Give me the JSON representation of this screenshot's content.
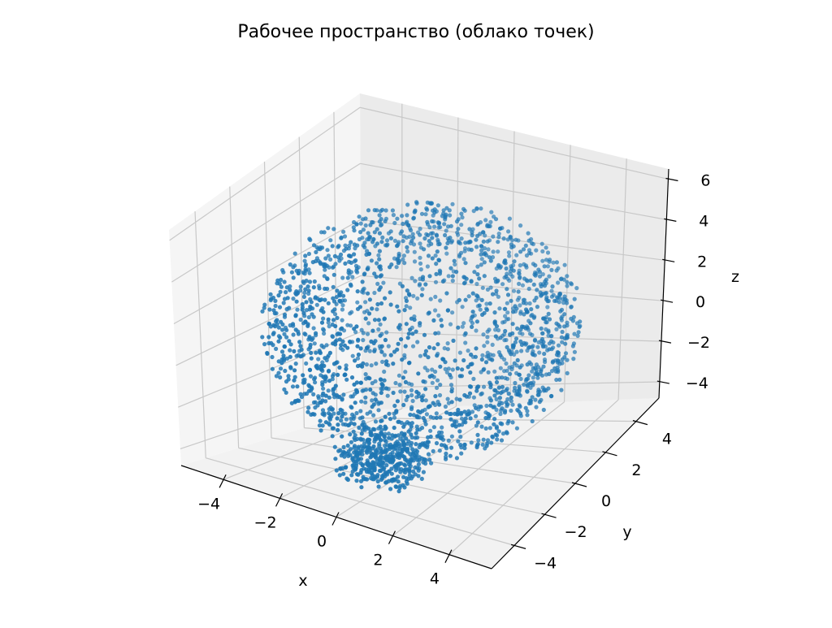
{
  "chart_data": {
    "type": "scatter",
    "projection": "3d",
    "title": "Рабочее пространство (облако точек)",
    "xlabel": "x",
    "ylabel": "y",
    "zlabel": "z",
    "xlim": [
      -5.5,
      5.5
    ],
    "ylim": [
      -5.5,
      5.5
    ],
    "zlim": [
      -4.8,
      6.5
    ],
    "x_ticks": [
      -4,
      -2,
      0,
      2,
      4
    ],
    "y_ticks": [
      -4,
      -2,
      0,
      2,
      4
    ],
    "z_ticks": [
      -4,
      -2,
      0,
      2,
      4,
      6
    ],
    "x_tick_labels": [
      "−4",
      "−2",
      "0",
      "2",
      "4"
    ],
    "y_tick_labels": [
      "−4",
      "−2",
      "0",
      "2",
      "4"
    ],
    "z_tick_labels": [
      "−4",
      "−2",
      "0",
      "2",
      "4",
      "6"
    ],
    "grid": true,
    "point_color": "#1f77b4",
    "series": [
      {
        "description": "approximately 2000 points filling a spherical shell centred near (0, 0, 0.8), radius about 5",
        "approx_point_count": 2000,
        "center": [
          0,
          0,
          0.8
        ],
        "outer_radius": 5.0,
        "inner_radius": 2.6
      }
    ]
  }
}
